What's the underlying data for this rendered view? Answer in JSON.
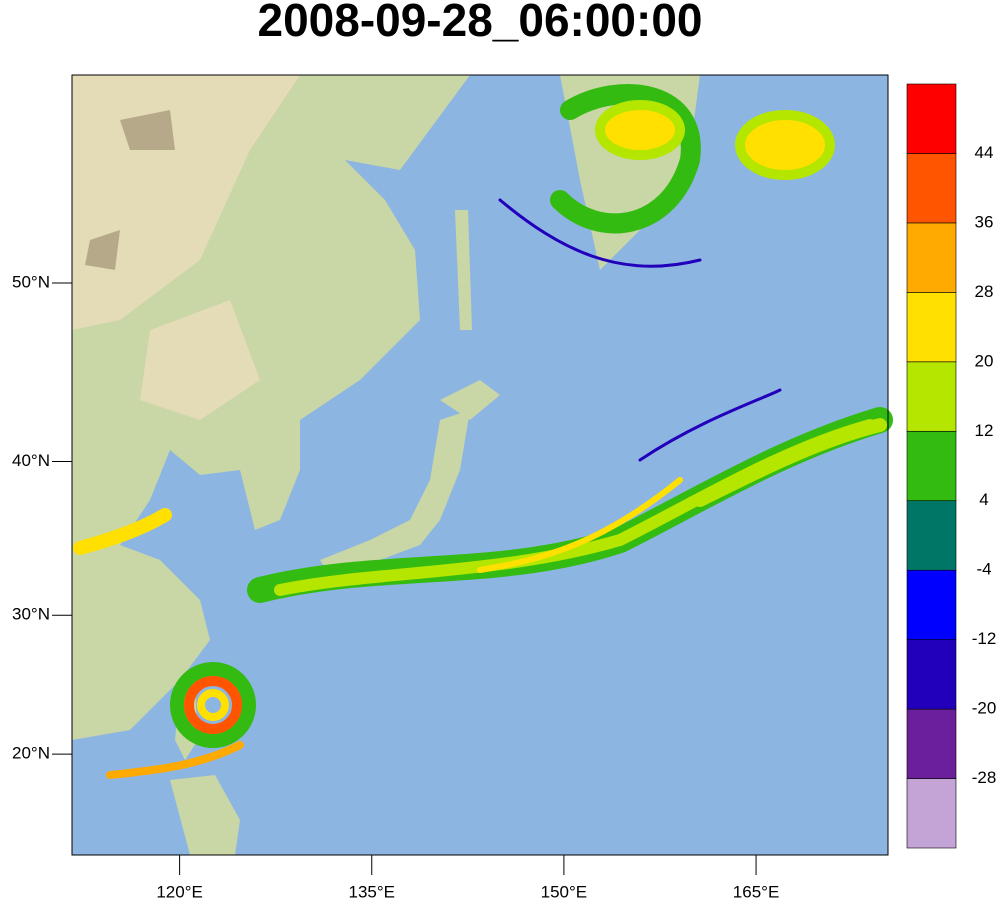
{
  "title": "2008-09-28_06:00:00",
  "map": {
    "projection": "mercator",
    "xlim": [
      111.6,
      175.3
    ],
    "ylim": [
      12.3,
      59.5
    ],
    "xticks": [
      {
        "value": 120,
        "label": "120°E"
      },
      {
        "value": 135,
        "label": "135°E"
      },
      {
        "value": 150,
        "label": "150°E"
      },
      {
        "value": 165,
        "label": "165°E"
      }
    ],
    "yticks": [
      {
        "value": 20,
        "label": "20°N"
      },
      {
        "value": 30,
        "label": "30°N"
      },
      {
        "value": 40,
        "label": "40°N"
      },
      {
        "value": 50,
        "label": "50°N"
      }
    ]
  },
  "colorbar": {
    "levels": [
      -28,
      -20,
      -12,
      -4,
      4,
      12,
      20,
      28,
      36,
      44
    ],
    "colors": [
      "#c4a3d6",
      "#6b1f9a",
      "#2200bb",
      "#0000ff",
      "#007766",
      "#33bb11",
      "#b4e600",
      "#ffe000",
      "#ffaa00",
      "#ff5500",
      "#ff0000"
    ]
  }
}
